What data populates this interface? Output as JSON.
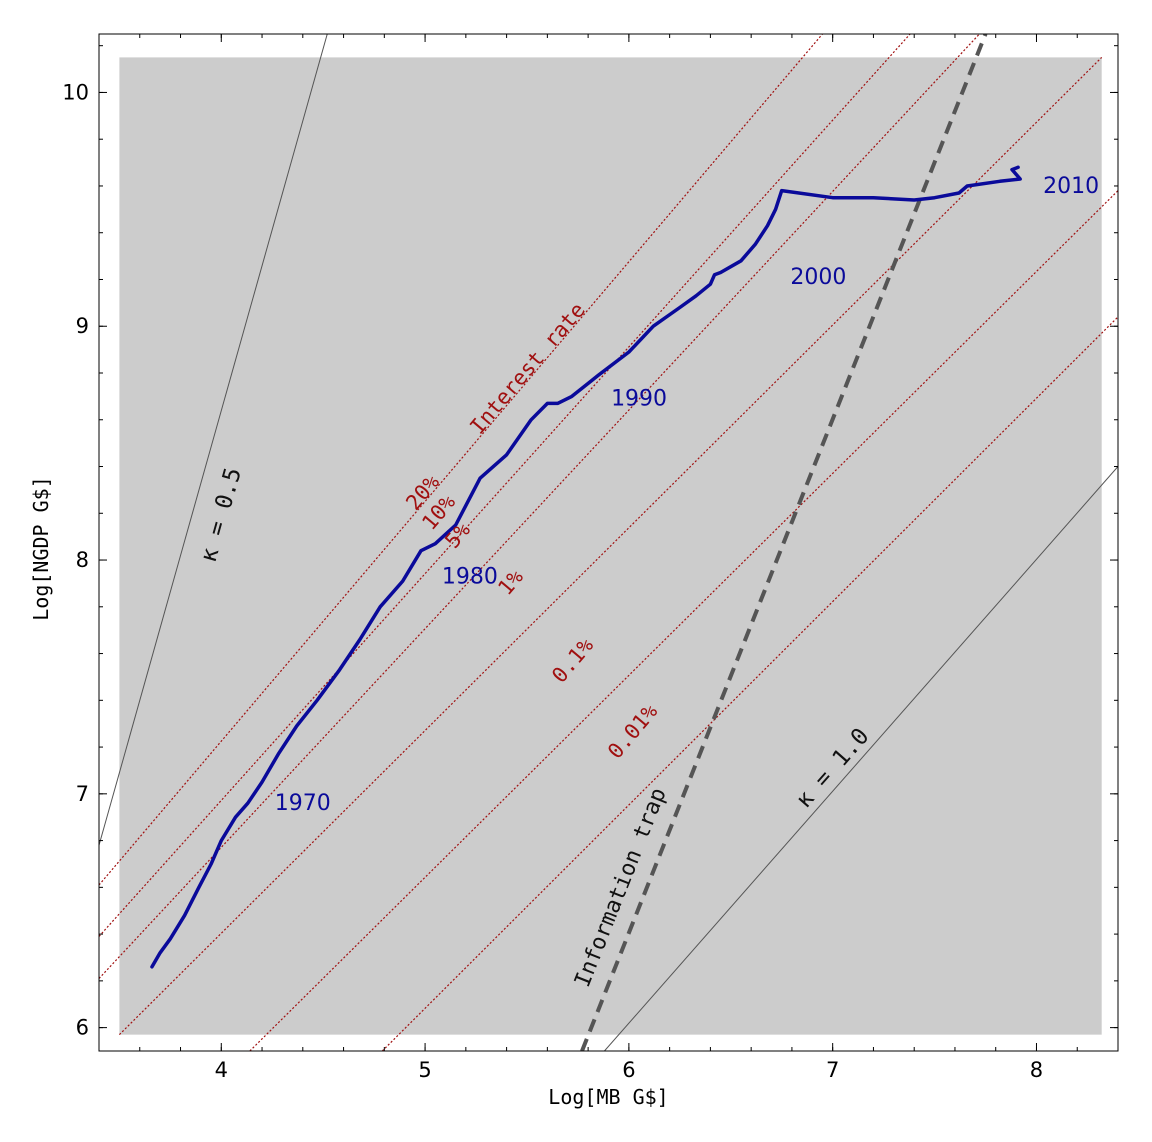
{
  "chart_data": {
    "type": "line",
    "xlabel": "Log[MB G$]",
    "ylabel": "Log[NGDP G$]",
    "xlim": [
      3.4,
      8.4
    ],
    "ylim": [
      5.9,
      10.25
    ],
    "xticks": [
      4,
      5,
      6,
      7,
      8
    ],
    "yticks": [
      6,
      7,
      8,
      9,
      10
    ],
    "shaded_region": {
      "x": [
        3.5,
        8.32
      ],
      "y": [
        5.97,
        10.15
      ],
      "color": "#cccccc"
    },
    "colors": {
      "series": "#0a0a9a",
      "rate_lines": "#a01010",
      "kappa_lines": "#555555",
      "trap_line": "#555555",
      "shade": "#cccccc"
    },
    "series": [
      {
        "color": "#0a0a9a",
        "x": [
          3.66,
          3.7,
          3.75,
          3.82,
          3.89,
          3.95,
          4.0,
          4.07,
          4.13,
          4.2,
          4.28,
          4.37,
          4.47,
          4.58,
          4.68,
          4.78,
          4.89,
          4.98,
          5.05,
          5.15,
          5.27,
          5.4,
          5.52,
          5.6,
          5.65,
          5.72,
          5.85,
          6.0,
          6.12,
          6.25,
          6.33,
          6.4,
          6.42,
          6.45,
          6.55,
          6.62,
          6.68,
          6.72,
          6.75,
          7.0,
          7.2,
          7.4,
          7.5,
          7.62,
          7.66,
          7.82,
          7.92,
          7.88,
          7.91
        ],
        "y": [
          6.26,
          6.32,
          6.38,
          6.48,
          6.6,
          6.7,
          6.8,
          6.9,
          6.96,
          7.05,
          7.17,
          7.29,
          7.4,
          7.53,
          7.66,
          7.8,
          7.91,
          8.04,
          8.07,
          8.15,
          8.35,
          8.45,
          8.6,
          8.67,
          8.67,
          8.7,
          8.79,
          8.89,
          9.0,
          9.08,
          9.13,
          9.18,
          9.22,
          9.23,
          9.28,
          9.35,
          9.43,
          9.5,
          9.58,
          9.55,
          9.55,
          9.54,
          9.55,
          9.57,
          9.6,
          9.62,
          9.63,
          9.67,
          9.68
        ]
      }
    ],
    "year_labels": [
      {
        "text": "1970",
        "x": 4.4,
        "y": 6.93
      },
      {
        "text": "1980",
        "x": 5.22,
        "y": 7.9
      },
      {
        "text": "1990",
        "x": 6.05,
        "y": 8.66
      },
      {
        "text": "2000",
        "x": 6.93,
        "y": 9.18
      },
      {
        "text": "2010",
        "x": 8.17,
        "y": 9.57
      }
    ],
    "rate_lines": [
      {
        "label": "20%",
        "x": [
          3.4,
          6.95
        ],
        "y": [
          6.61,
          10.25
        ]
      },
      {
        "label": "10%",
        "x": [
          3.4,
          7.38
        ],
        "y": [
          6.39,
          10.25
        ]
      },
      {
        "label": "5%",
        "x": [
          3.4,
          7.72
        ],
        "y": [
          6.21,
          10.25
        ]
      },
      {
        "label": "1%",
        "x": [
          3.5,
          8.32
        ],
        "y": [
          5.97,
          10.15
        ]
      },
      {
        "label": "0.1%",
        "x": [
          4.14,
          8.4
        ],
        "y": [
          5.9,
          9.58
        ]
      },
      {
        "label": "0.01%",
        "x": [
          4.79,
          8.4
        ],
        "y": [
          5.9,
          9.04
        ]
      }
    ],
    "rate_title": "Interest rate",
    "kappa_lines": [
      {
        "label": "κ = 0.5",
        "x": [
          3.4,
          4.52
        ],
        "y": [
          6.78,
          10.25
        ]
      },
      {
        "label": "κ = 1.0",
        "x": [
          5.88,
          8.4
        ],
        "y": [
          5.9,
          8.4
        ]
      }
    ],
    "trap_line": {
      "label": "Information trap",
      "x": [
        5.77,
        7.75
      ],
      "y": [
        5.9,
        10.25
      ]
    }
  }
}
